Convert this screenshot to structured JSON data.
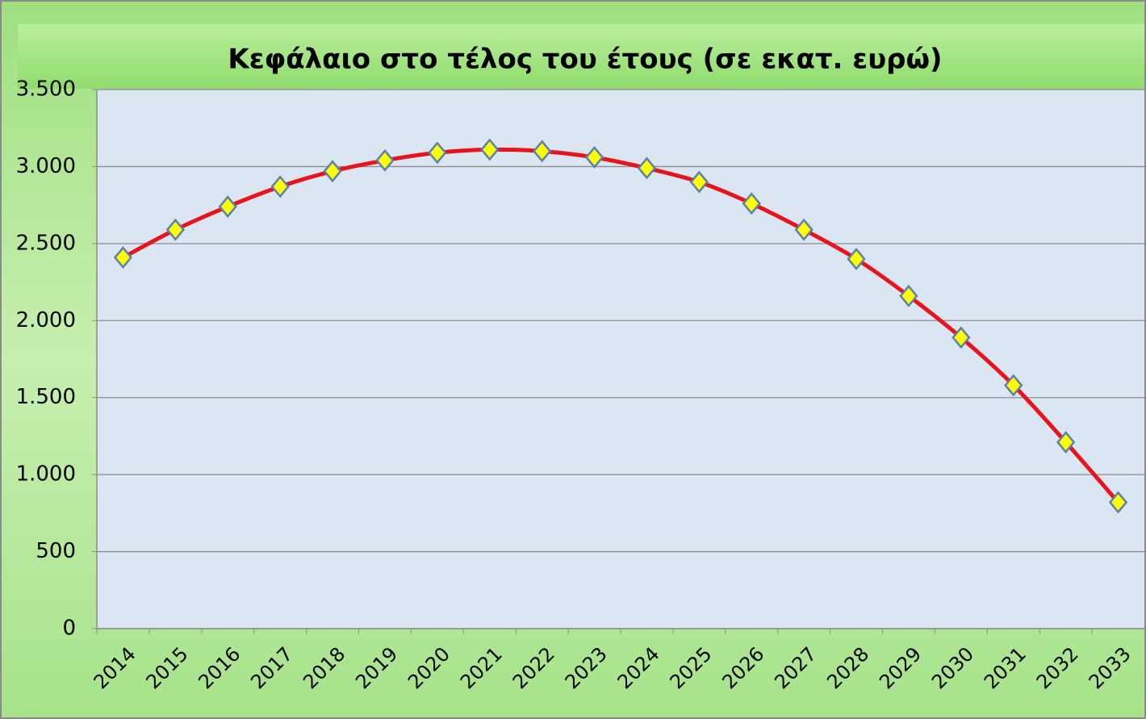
{
  "chart_data": {
    "type": "line",
    "title": "Κεφάλαιο στο τέλος του έτους  (σε εκατ.  ευρώ)",
    "categories": [
      "2014",
      "2015",
      "2016",
      "2017",
      "2018",
      "2019",
      "2020",
      "2021",
      "2022",
      "2023",
      "2024",
      "2025",
      "2026",
      "2027",
      "2028",
      "2029",
      "2030",
      "2031",
      "2032",
      "2033"
    ],
    "series": [
      {
        "color": "#e8141b",
        "marker_color": "#ffff00",
        "values": [
          2410,
          2590,
          2740,
          2870,
          2970,
          3040,
          3090,
          3110,
          3100,
          3060,
          2990,
          2900,
          2760,
          2590,
          2400,
          2160,
          1890,
          1580,
          1210,
          820
        ]
      }
    ],
    "ylim": [
      0,
      3500
    ],
    "yticks": [
      0,
      500,
      {
        "value": 1000,
        "label": "1.000"
      },
      {
        "value": 1500,
        "label": "1.500"
      },
      {
        "value": 2000,
        "label": "2.000"
      },
      {
        "value": 2500,
        "label": "2.500"
      },
      {
        "value": 3000,
        "label": "3.000"
      },
      {
        "value": 3500,
        "label": "3.500"
      }
    ],
    "grid": true
  }
}
